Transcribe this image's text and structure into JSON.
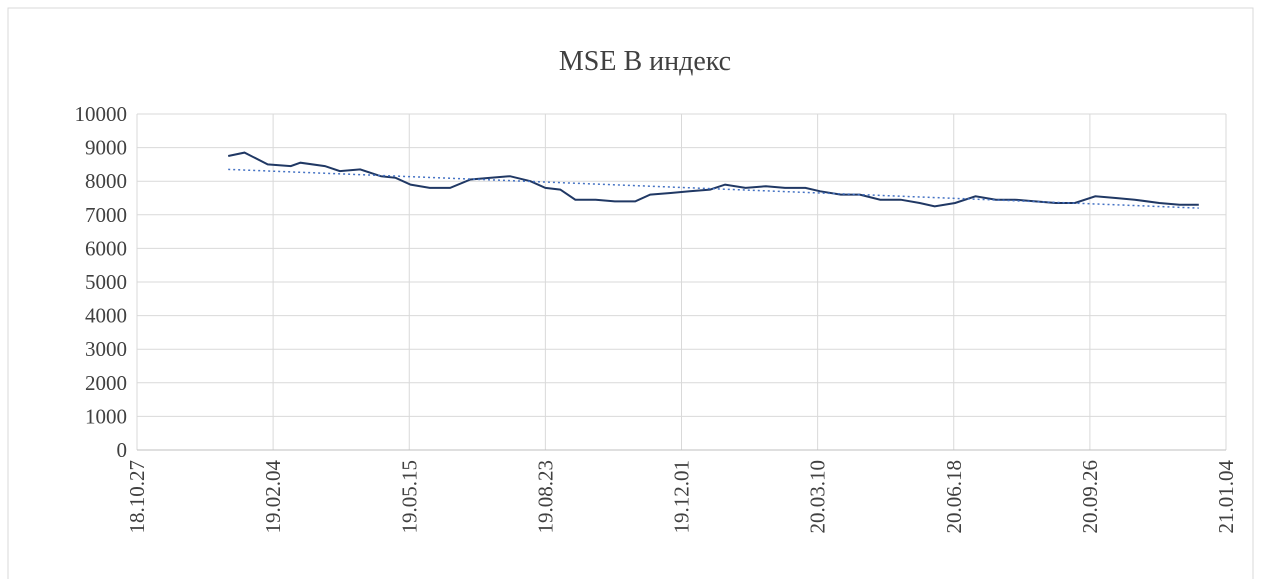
{
  "chart_data": {
    "type": "line",
    "title": "MSE B индекс",
    "xlim": [
      "2018-10-27",
      "2021-01-04"
    ],
    "xticks": [
      {
        "value": "2018-10-27",
        "label": "18.10.27"
      },
      {
        "value": "2019-02-04",
        "label": "19.02.04"
      },
      {
        "value": "2019-05-15",
        "label": "19.05.15"
      },
      {
        "value": "2019-08-23",
        "label": "19.08.23"
      },
      {
        "value": "2019-12-01",
        "label": "19.12.01"
      },
      {
        "value": "2020-03-10",
        "label": "20.03.10"
      },
      {
        "value": "2020-06-18",
        "label": "20.06.18"
      },
      {
        "value": "2020-09-26",
        "label": "20.09.26"
      },
      {
        "value": "2021-01-04",
        "label": "21.01.04"
      }
    ],
    "ylim": [
      0,
      10000
    ],
    "yticks": [
      0,
      1000,
      2000,
      3000,
      4000,
      5000,
      6000,
      7000,
      8000,
      9000,
      10000
    ],
    "grid": true,
    "series": [
      {
        "color": "#203864",
        "style": "solid",
        "x": [
          "2019-01-02",
          "2019-01-14",
          "2019-01-31",
          "2019-02-17",
          "2019-02-24",
          "2019-03-14",
          "2019-03-25",
          "2019-04-09",
          "2019-04-24",
          "2019-05-05",
          "2019-05-16",
          "2019-05-30",
          "2019-06-14",
          "2019-06-29",
          "2019-07-14",
          "2019-07-28",
          "2019-08-12",
          "2019-08-23",
          "2019-09-03",
          "2019-09-14",
          "2019-09-29",
          "2019-10-13",
          "2019-10-28",
          "2019-11-08",
          "2019-11-23",
          "2019-12-07",
          "2019-12-22",
          "2020-01-02",
          "2020-01-17",
          "2020-02-01",
          "2020-02-15",
          "2020-03-01",
          "2020-03-12",
          "2020-03-27",
          "2020-04-10",
          "2020-04-25",
          "2020-05-10",
          "2020-05-24",
          "2020-06-04",
          "2020-06-19",
          "2020-07-04",
          "2020-07-19",
          "2020-08-02",
          "2020-08-17",
          "2020-09-01",
          "2020-09-15",
          "2020-09-30",
          "2020-10-15",
          "2020-10-29",
          "2020-11-16",
          "2020-12-01",
          "2020-12-15"
        ],
        "values": [
          8750,
          8850,
          8500,
          8450,
          8550,
          8450,
          8300,
          8350,
          8150,
          8100,
          7900,
          7800,
          7800,
          8050,
          8100,
          8150,
          8000,
          7800,
          7750,
          7450,
          7450,
          7400,
          7400,
          7600,
          7650,
          7700,
          7750,
          7900,
          7800,
          7850,
          7800,
          7800,
          7700,
          7600,
          7600,
          7450,
          7450,
          7350,
          7250,
          7350,
          7550,
          7450,
          7450,
          7400,
          7350,
          7350,
          7550,
          7500,
          7450,
          7350,
          7300,
          7300
        ]
      },
      {
        "color": "#4472c4",
        "style": "dotted",
        "x": [
          "2019-01-02",
          "2020-12-15"
        ],
        "values": [
          8350,
          7200
        ]
      }
    ]
  }
}
